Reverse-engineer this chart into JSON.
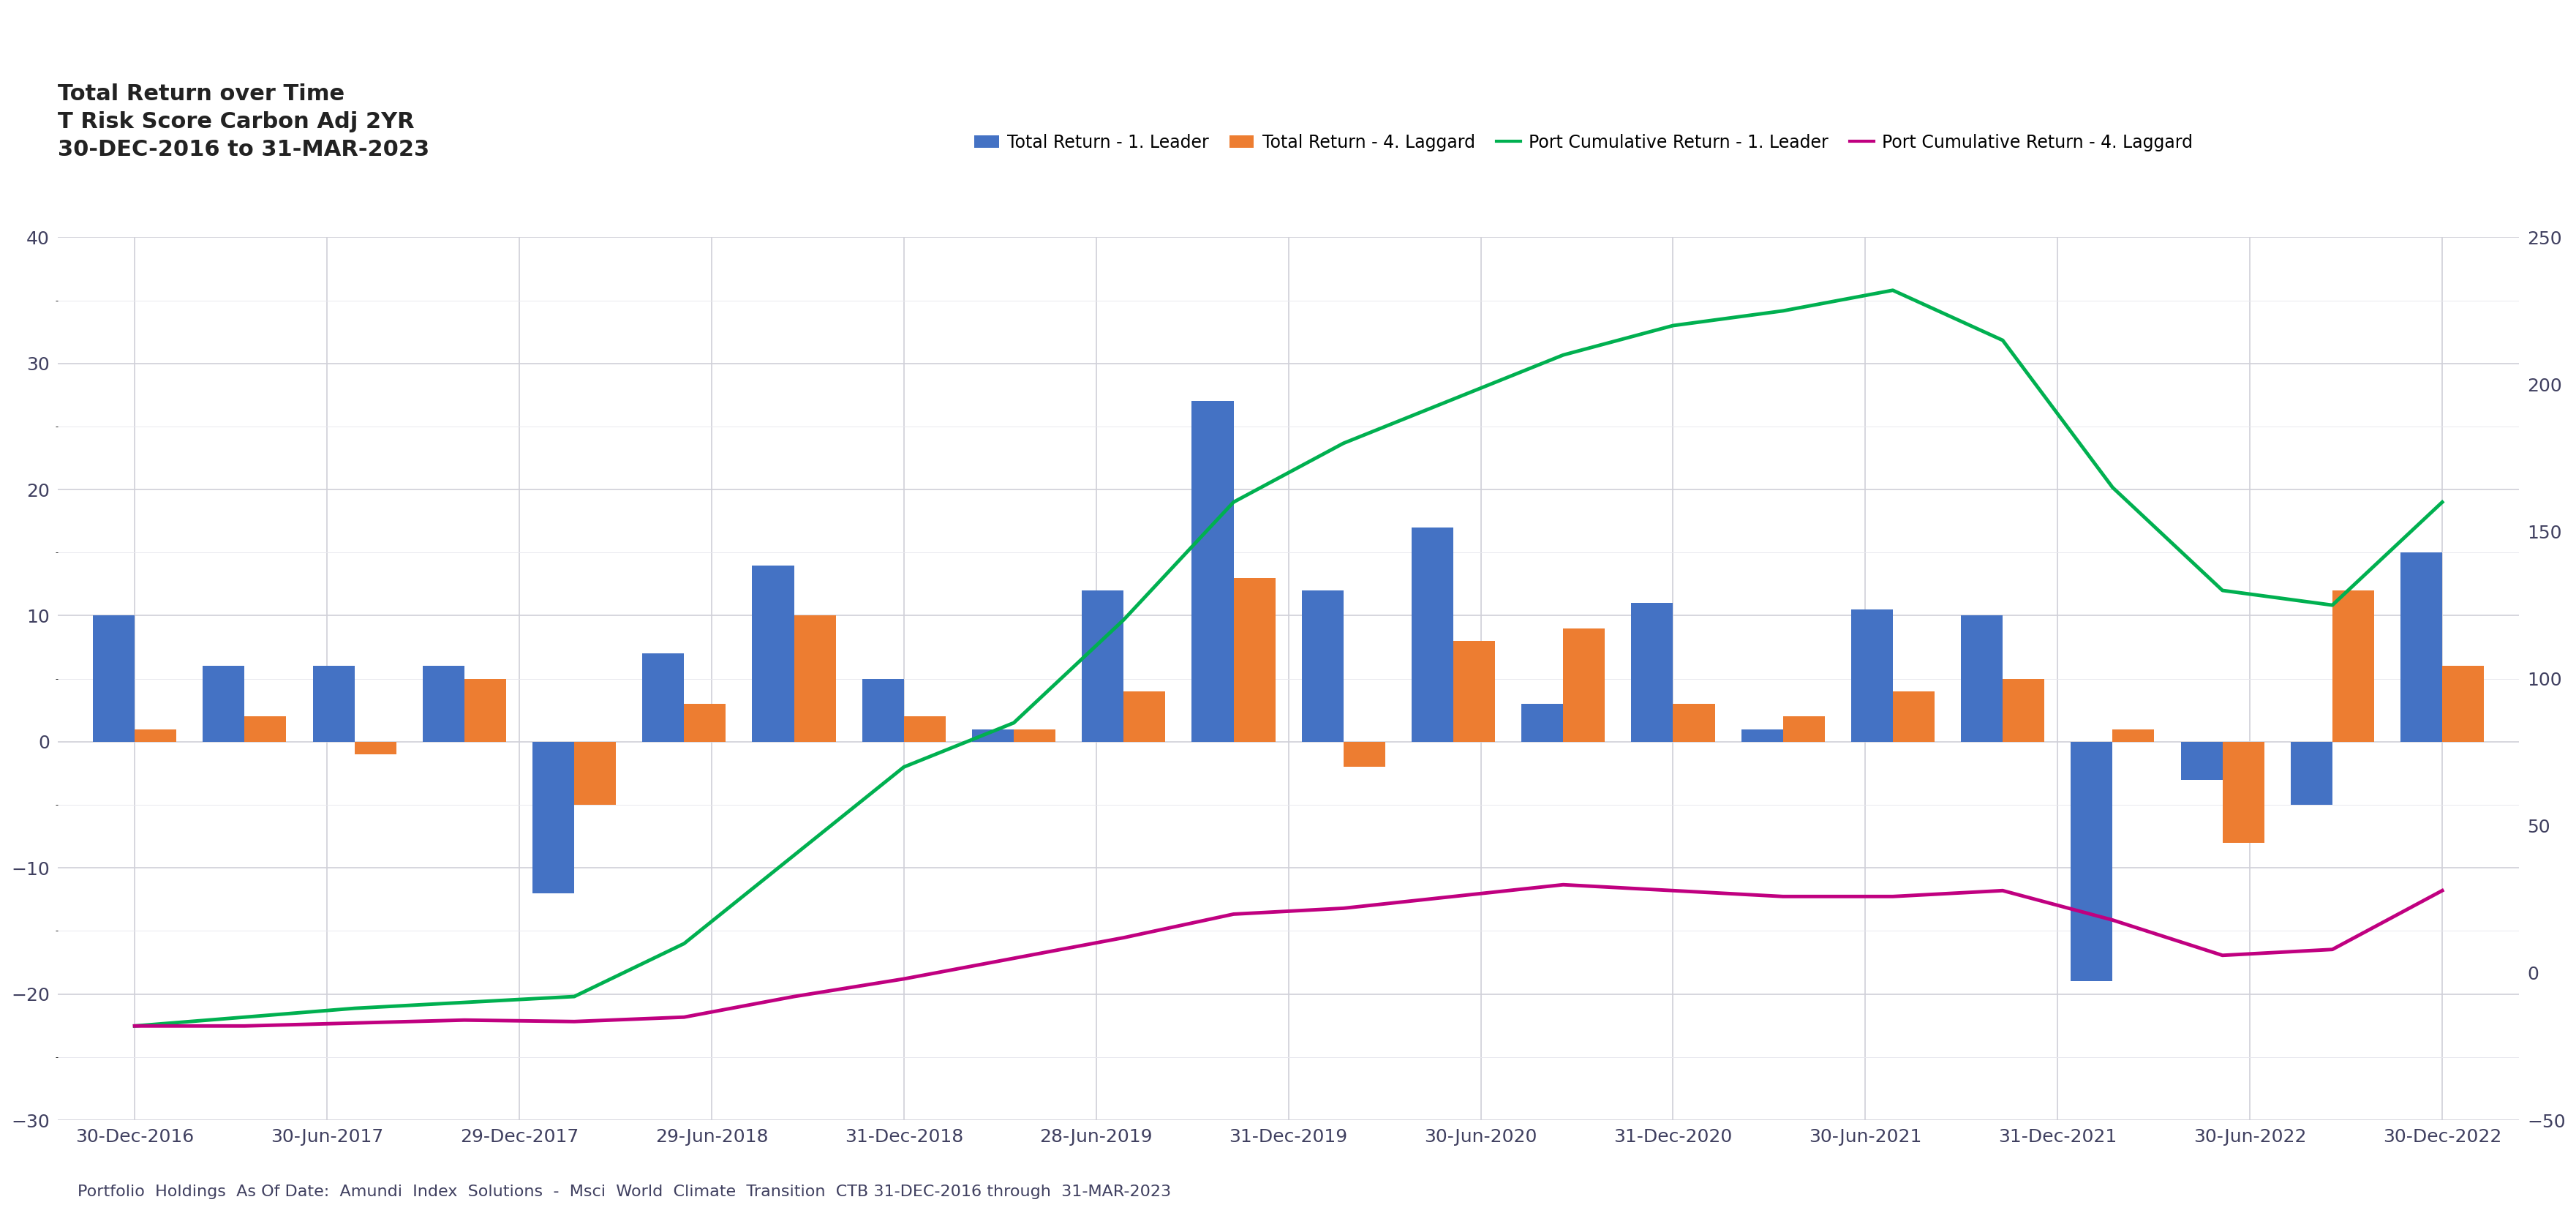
{
  "title_lines": [
    "Total Return over Time",
    "T Risk Score Carbon Adj 2YR",
    "30-DEC-2016 to 31-MAR-2023"
  ],
  "x_labels": [
    "30-Dec-2016",
    "30-Jun-2017",
    "29-Dec-2017",
    "29-Jun-2018",
    "31-Dec-2018",
    "28-Jun-2019",
    "31-Dec-2019",
    "30-Jun-2020",
    "31-Dec-2020",
    "30-Jun-2021",
    "31-Dec-2021",
    "30-Jun-2022",
    "30-Dec-2022"
  ],
  "bar_leader": [
    10.0,
    6.0,
    6.0,
    6.0,
    -12.0,
    7.0,
    14.0,
    5.0,
    1.0,
    12.0,
    27.0,
    12.0,
    17.0,
    3.0,
    11.0,
    1.0,
    10.5,
    10.0,
    -19.0,
    -3.0,
    -5.0,
    15.0
  ],
  "bar_laggard": [
    1.0,
    2.0,
    -1.0,
    5.0,
    -5.0,
    3.0,
    10.0,
    2.0,
    1.0,
    4.0,
    13.0,
    -2.0,
    8.0,
    9.0,
    3.0,
    2.0,
    4.0,
    5.0,
    1.0,
    -8.0,
    12.0,
    6.0
  ],
  "line_leader": [
    -18.0,
    -15.0,
    -12.0,
    -10.0,
    -8.0,
    10.0,
    40.0,
    70.0,
    85.0,
    120.0,
    160.0,
    180.0,
    195.0,
    210.0,
    220.0,
    225.0,
    232.0,
    215.0,
    165.0,
    130.0,
    125.0,
    160.0
  ],
  "line_laggard": [
    -18.0,
    -18.0,
    -17.0,
    -16.0,
    -16.5,
    -15.0,
    -8.0,
    -2.0,
    5.0,
    12.0,
    20.0,
    22.0,
    26.0,
    30.0,
    28.0,
    26.0,
    26.0,
    28.0,
    18.0,
    6.0,
    8.0,
    28.0
  ],
  "bar_color_leader": "#4472C4",
  "bar_color_laggard": "#ED7D31",
  "line_color_leader": "#00B050",
  "line_color_laggard": "#C00080",
  "footer": "Portfolio  Holdings  As Of Date:  Amundi  Index  Solutions  -  Msci  World  Climate  Transition  CTB 31-DEC-2016 through  31-MAR-2023",
  "ylim_left": [
    -30,
    40
  ],
  "ylim_right": [
    -50,
    250
  ],
  "background_color": "#FFFFFF",
  "grid_color": "#D0D0D8",
  "minor_grid_color": "#E8E8EE",
  "tick_label_color": "#404060",
  "title_color": "#222222"
}
